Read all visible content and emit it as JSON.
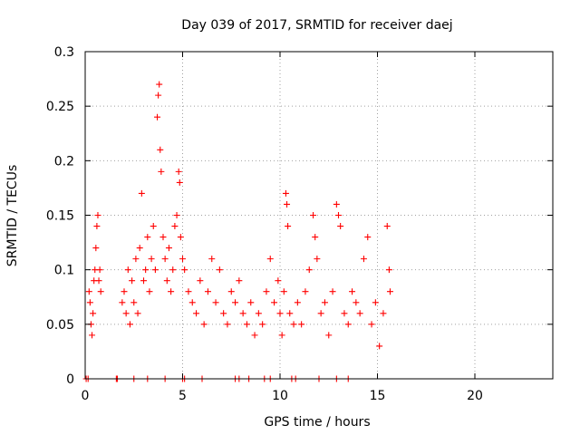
{
  "chart_data": {
    "type": "scatter",
    "title": "Day 039 of 2017, SRMTID for receiver daej",
    "xlabel": "GPS time / hours",
    "ylabel": "SRMTID / TECUs",
    "xlim": [
      0,
      24
    ],
    "ylim": [
      0,
      0.3
    ],
    "xticks": [
      0,
      5,
      10,
      15,
      20
    ],
    "xtick_labels": [
      "0",
      "5",
      "10",
      "15",
      "20"
    ],
    "yticks": [
      0,
      0.05,
      0.1,
      0.15,
      0.2,
      0.25,
      0.3
    ],
    "ytick_labels": [
      "0",
      "0.05",
      "0.1",
      "0.15",
      "0.2",
      "0.25",
      "0.3"
    ],
    "grid": true,
    "marker": "+",
    "color": "#ff0000",
    "series": [
      {
        "name": "SRMTID",
        "points": [
          [
            0.05,
            0
          ],
          [
            0.15,
            0
          ],
          [
            0.2,
            0.08
          ],
          [
            0.25,
            0.07
          ],
          [
            0.3,
            0.05
          ],
          [
            0.35,
            0.04
          ],
          [
            0.4,
            0.06
          ],
          [
            0.45,
            0.09
          ],
          [
            0.5,
            0.1
          ],
          [
            0.55,
            0.12
          ],
          [
            0.6,
            0.14
          ],
          [
            0.65,
            0.15
          ],
          [
            0.7,
            0.09
          ],
          [
            0.75,
            0.1
          ],
          [
            0.8,
            0.08
          ],
          [
            1.6,
            0
          ],
          [
            1.65,
            0
          ],
          [
            1.9,
            0.07
          ],
          [
            2.0,
            0.08
          ],
          [
            2.1,
            0.06
          ],
          [
            2.2,
            0.1
          ],
          [
            2.3,
            0.05
          ],
          [
            2.4,
            0.09
          ],
          [
            2.5,
            0.07
          ],
          [
            2.6,
            0.11
          ],
          [
            2.7,
            0.06
          ],
          [
            2.8,
            0.12
          ],
          [
            2.9,
            0.17
          ],
          [
            3.0,
            0.09
          ],
          [
            3.1,
            0.1
          ],
          [
            3.2,
            0.13
          ],
          [
            3.3,
            0.08
          ],
          [
            3.4,
            0.11
          ],
          [
            3.5,
            0.14
          ],
          [
            3.6,
            0.1
          ],
          [
            3.7,
            0.24
          ],
          [
            3.75,
            0.26
          ],
          [
            3.8,
            0.27
          ],
          [
            3.85,
            0.21
          ],
          [
            3.9,
            0.19
          ],
          [
            4.0,
            0.13
          ],
          [
            4.1,
            0.11
          ],
          [
            4.2,
            0.09
          ],
          [
            4.3,
            0.12
          ],
          [
            4.4,
            0.08
          ],
          [
            4.5,
            0.1
          ],
          [
            4.6,
            0.14
          ],
          [
            4.7,
            0.15
          ],
          [
            4.8,
            0.19
          ],
          [
            4.85,
            0.18
          ],
          [
            4.9,
            0.13
          ],
          [
            5.0,
            0.11
          ],
          [
            5.1,
            0.1
          ],
          [
            2.5,
            0
          ],
          [
            3.2,
            0
          ],
          [
            4.1,
            0
          ],
          [
            5.0,
            0
          ],
          [
            5.1,
            0
          ],
          [
            5.3,
            0.08
          ],
          [
            5.5,
            0.07
          ],
          [
            5.7,
            0.06
          ],
          [
            5.9,
            0.09
          ],
          [
            6.1,
            0.05
          ],
          [
            6.3,
            0.08
          ],
          [
            6.5,
            0.11
          ],
          [
            6.7,
            0.07
          ],
          [
            6.9,
            0.1
          ],
          [
            7.1,
            0.06
          ],
          [
            7.3,
            0.05
          ],
          [
            7.5,
            0.08
          ],
          [
            7.7,
            0.07
          ],
          [
            7.9,
            0.09
          ],
          [
            8.1,
            0.06
          ],
          [
            8.3,
            0.05
          ],
          [
            8.5,
            0.07
          ],
          [
            8.7,
            0.04
          ],
          [
            8.9,
            0.06
          ],
          [
            9.1,
            0.05
          ],
          [
            9.3,
            0.08
          ],
          [
            9.5,
            0.11
          ],
          [
            9.7,
            0.07
          ],
          [
            9.9,
            0.09
          ],
          [
            6.0,
            0
          ],
          [
            7.7,
            0
          ],
          [
            7.9,
            0
          ],
          [
            8.4,
            0
          ],
          [
            9.2,
            0
          ],
          [
            9.5,
            0
          ],
          [
            10.0,
            0.06
          ],
          [
            10.1,
            0.04
          ],
          [
            10.2,
            0.08
          ],
          [
            10.3,
            0.17
          ],
          [
            10.35,
            0.16
          ],
          [
            10.4,
            0.14
          ],
          [
            10.5,
            0.06
          ],
          [
            10.7,
            0.05
          ],
          [
            10.9,
            0.07
          ],
          [
            11.1,
            0.05
          ],
          [
            11.3,
            0.08
          ],
          [
            11.5,
            0.1
          ],
          [
            11.7,
            0.15
          ],
          [
            11.8,
            0.13
          ],
          [
            11.9,
            0.11
          ],
          [
            12.1,
            0.06
          ],
          [
            12.3,
            0.07
          ],
          [
            12.5,
            0.04
          ],
          [
            12.7,
            0.08
          ],
          [
            12.9,
            0.16
          ],
          [
            13.0,
            0.15
          ],
          [
            13.1,
            0.14
          ],
          [
            13.3,
            0.06
          ],
          [
            13.5,
            0.05
          ],
          [
            13.7,
            0.08
          ],
          [
            13.9,
            0.07
          ],
          [
            14.1,
            0.06
          ],
          [
            14.3,
            0.11
          ],
          [
            14.5,
            0.13
          ],
          [
            14.7,
            0.05
          ],
          [
            14.9,
            0.07
          ],
          [
            15.1,
            0.03
          ],
          [
            15.3,
            0.06
          ],
          [
            15.5,
            0.14
          ],
          [
            15.6,
            0.1
          ],
          [
            15.65,
            0.08
          ],
          [
            10.6,
            0
          ],
          [
            10.8,
            0
          ],
          [
            12.0,
            0
          ],
          [
            12.9,
            0
          ],
          [
            13.5,
            0
          ]
        ]
      }
    ]
  }
}
